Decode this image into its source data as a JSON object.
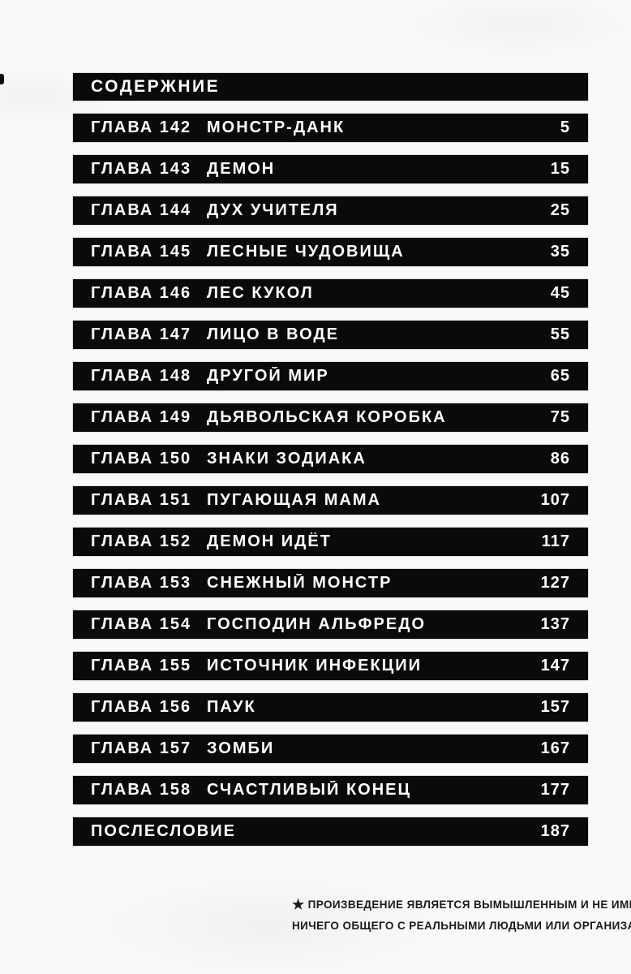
{
  "title": "СОДЕРЖНИЕ",
  "toc": [
    {
      "chapter": "ГЛАВА 142",
      "title": "МОНСТР-ДАНК",
      "page": "5"
    },
    {
      "chapter": "ГЛАВА 143",
      "title": "ДЕМОН",
      "page": "15"
    },
    {
      "chapter": "ГЛАВА 144",
      "title": "ДУХ УЧИТЕЛЯ",
      "page": "25"
    },
    {
      "chapter": "ГЛАВА 145",
      "title": "ЛЕСНЫЕ ЧУДОВИЩА",
      "page": "35"
    },
    {
      "chapter": "ГЛАВА 146",
      "title": "ЛЕС КУКОЛ",
      "page": "45"
    },
    {
      "chapter": "ГЛАВА 147",
      "title": "ЛИЦО В ВОДЕ",
      "page": "55"
    },
    {
      "chapter": "ГЛАВА 148",
      "title": "ДРУГОЙ МИР",
      "page": "65"
    },
    {
      "chapter": "ГЛАВА 149",
      "title": "ДЬЯВОЛЬСКАЯ КОРОБКА",
      "page": "75"
    },
    {
      "chapter": "ГЛАВА 150",
      "title": "ЗНАКИ ЗОДИАКА",
      "page": "86"
    },
    {
      "chapter": "ГЛАВА 151",
      "title": "ПУГАЮЩАЯ МАМА",
      "page": "107"
    },
    {
      "chapter": "ГЛАВА 152",
      "title": "ДЕМОН ИДЁТ",
      "page": "117"
    },
    {
      "chapter": "ГЛАВА 153",
      "title": "СНЕЖНЫЙ МОНСТР",
      "page": "127"
    },
    {
      "chapter": "ГЛАВА 154",
      "title": "ГОСПОДИН АЛЬФРЕДО",
      "page": "137"
    },
    {
      "chapter": "ГЛАВА 155",
      "title": "ИСТОЧНИК ИНФЕКЦИИ",
      "page": "147"
    },
    {
      "chapter": "ГЛАВА 156",
      "title": "ПАУК",
      "page": "157"
    },
    {
      "chapter": "ГЛАВА 157",
      "title": "ЗОМБИ",
      "page": "167"
    },
    {
      "chapter": "ГЛАВА 158",
      "title": "СЧАСТЛИВЫЙ КОНЕЦ",
      "page": "177"
    },
    {
      "chapter": "",
      "title": "ПОСЛЕСЛОВИЕ",
      "page": "187"
    }
  ],
  "footnote": {
    "star": "★",
    "line1": "ПРОИЗВЕДЕНИЕ ЯВЛЯЕТСЯ ВЫМЫШЛЕННЫМ И НЕ ИМЕЕТ",
    "line2": "НИЧЕГО ОБЩЕГО С РЕАЛЬНЫМИ ЛЮДЬМИ ИЛИ ОРГАНИЗАЦИЯМИ."
  },
  "colors": {
    "paper": "#f9f9f7",
    "bar": "#0a0a0a",
    "bar_text": "#ffffff",
    "footnote_text": "#1a1a1a"
  }
}
